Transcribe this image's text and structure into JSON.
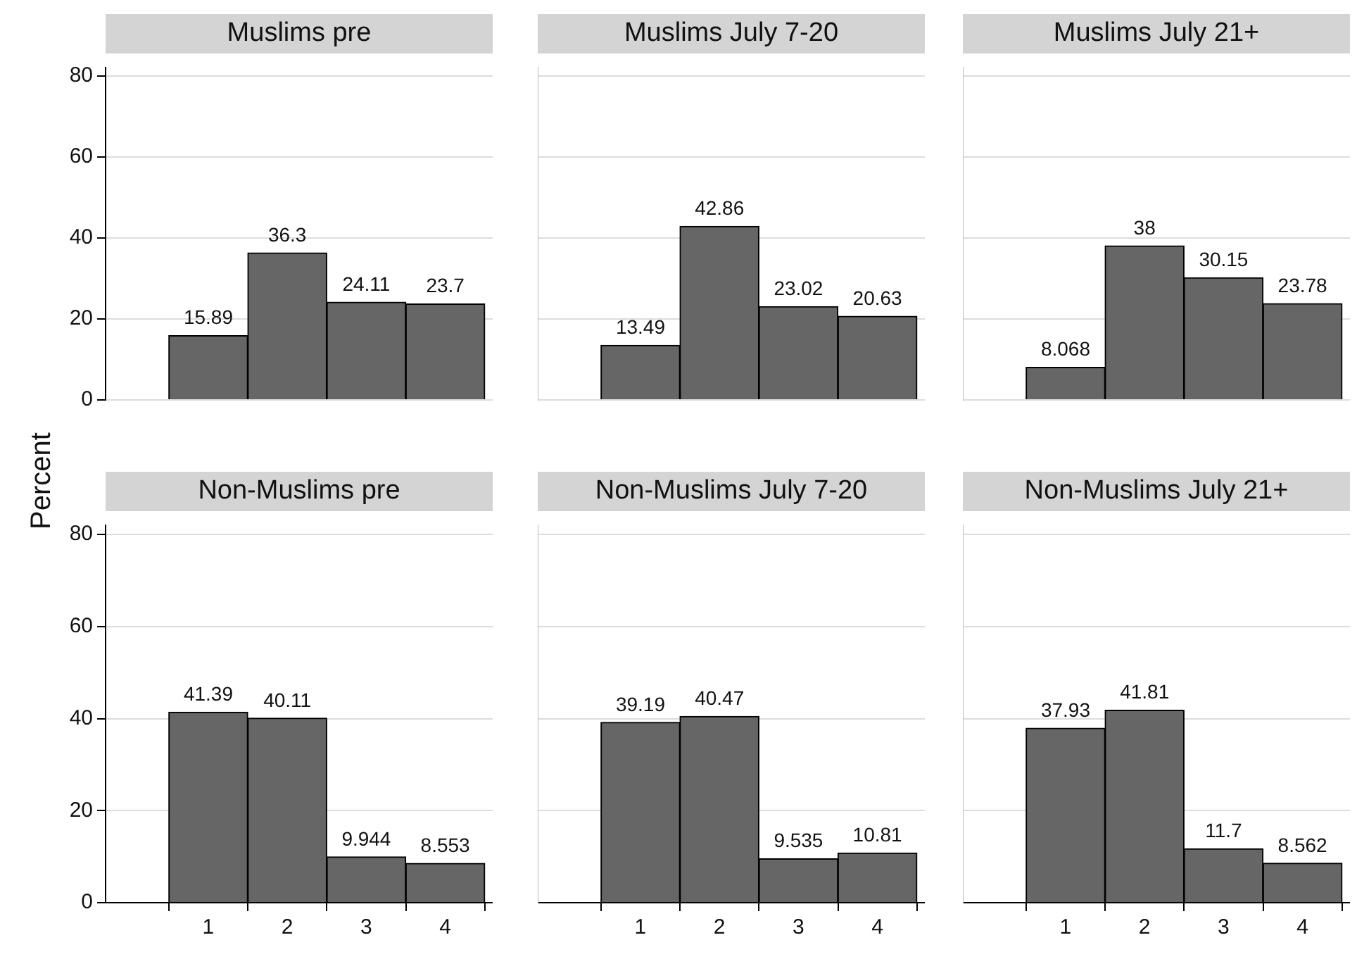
{
  "chart_data": [
    {
      "type": "histogram",
      "title": "Muslims pre",
      "ylabel": "Percent",
      "bins": [
        0.5,
        1.5,
        2.5,
        3.5,
        4.5
      ],
      "values": [
        15.89,
        36.3,
        24.11,
        23.7
      ],
      "color": "#666666",
      "xlim": [
        -0.3,
        4.6
      ],
      "xticks": [
        1,
        2,
        3,
        4
      ],
      "ylim": [
        0,
        82
      ],
      "yticks": [
        0,
        20,
        40,
        60,
        80
      ],
      "grid": "y",
      "data_labels": true,
      "tick_labels": "y"
    },
    {
      "type": "histogram",
      "title": "Muslims July 7-20",
      "bins": [
        0.5,
        1.5,
        2.5,
        3.5,
        4.5
      ],
      "values": [
        13.49,
        42.86,
        23.02,
        20.63
      ],
      "color": "#666666",
      "xlim": [
        -0.3,
        4.6
      ],
      "xticks": [
        1,
        2,
        3,
        4
      ],
      "ylim": [
        0,
        82
      ],
      "yticks": [
        0,
        20,
        40,
        60,
        80
      ],
      "grid": "y",
      "data_labels": true,
      "tick_labels": false
    },
    {
      "type": "histogram",
      "title": "Muslims July 21+",
      "bins": [
        0.5,
        1.5,
        2.5,
        3.5,
        4.5
      ],
      "values": [
        8.068,
        38,
        30.15,
        23.78
      ],
      "color": "#666666",
      "xlim": [
        -0.3,
        4.6
      ],
      "xticks": [
        1,
        2,
        3,
        4
      ],
      "ylim": [
        0,
        82
      ],
      "yticks": [
        0,
        20,
        40,
        60,
        80
      ],
      "grid": "y",
      "data_labels": true,
      "tick_labels": false
    },
    {
      "type": "histogram",
      "title": "Non-Muslims pre",
      "bins": [
        0.5,
        1.5,
        2.5,
        3.5,
        4.5
      ],
      "values": [
        41.39,
        40.11,
        9.944,
        8.553
      ],
      "color": "#666666",
      "xlim": [
        -0.3,
        4.6
      ],
      "xticks": [
        1,
        2,
        3,
        4
      ],
      "ylim": [
        0,
        82
      ],
      "yticks": [
        0,
        20,
        40,
        60,
        80
      ],
      "grid": "y",
      "data_labels": true
    },
    {
      "type": "histogram",
      "title": "Non-Muslims July 7-20",
      "bins": [
        0.5,
        1.5,
        2.5,
        3.5,
        4.5
      ],
      "values": [
        39.19,
        40.47,
        9.535,
        10.81
      ],
      "color": "#666666",
      "xlim": [
        -0.3,
        4.6
      ],
      "xticks": [
        1,
        2,
        3,
        4
      ],
      "ylim": [
        0,
        82
      ],
      "yticks": [
        0,
        20,
        40,
        60,
        80
      ],
      "grid": "y",
      "data_labels": true,
      "tick_labels": "x"
    },
    {
      "type": "histogram",
      "title": "Non-Muslims July 21+",
      "bins": [
        0.5,
        1.5,
        2.5,
        3.5,
        4.5
      ],
      "values": [
        37.93,
        41.81,
        11.7,
        8.562
      ],
      "color": "#666666",
      "xlim": [
        -0.3,
        4.6
      ],
      "xticks": [
        1,
        2,
        3,
        4
      ],
      "ylim": [
        0,
        82
      ],
      "yticks": [
        0,
        20,
        40,
        60,
        80
      ],
      "grid": "y",
      "data_labels": true,
      "tick_labels": "x"
    }
  ]
}
